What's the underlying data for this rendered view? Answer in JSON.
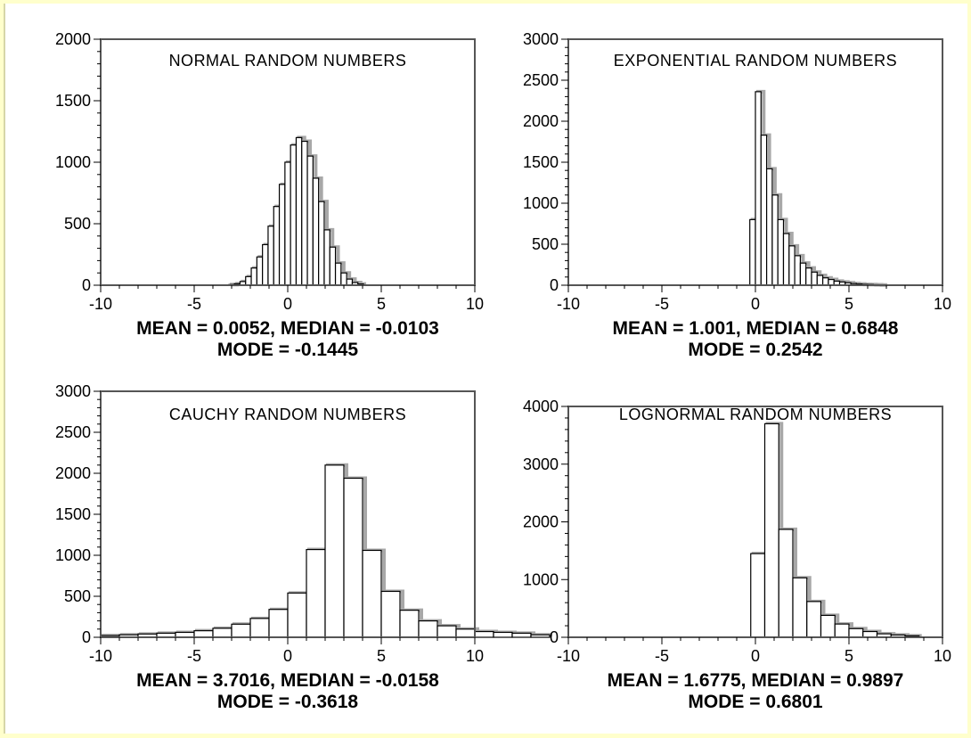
{
  "chart_data": [
    {
      "type": "bar",
      "title": "NORMAL RANDOM NUMBERS",
      "stats_line1": "MEAN = 0.0052, MEDIAN = -0.0103",
      "stats_line2": "MODE = -0.1445",
      "xlim": [
        -10,
        10
      ],
      "ylim": [
        0,
        2000
      ],
      "xticks": [
        -10,
        -5,
        0,
        5,
        10
      ],
      "yticks": [
        0,
        500,
        1000,
        1500,
        2000
      ],
      "bin_width": 0.3,
      "bin_start": -3.15,
      "values": [
        5,
        12,
        30,
        70,
        140,
        230,
        330,
        480,
        640,
        820,
        1000,
        1140,
        1200,
        1170,
        1050,
        870,
        680,
        450,
        310,
        180,
        100,
        50,
        22,
        10
      ],
      "grey_overlay": true
    },
    {
      "type": "bar",
      "title": "EXPONENTIAL RANDOM NUMBERS",
      "stats_line1": "MEAN = 1.001, MEDIAN = 0.6848",
      "stats_line2": "MODE = 0.2542",
      "xlim": [
        -10,
        10
      ],
      "ylim": [
        0,
        3000
      ],
      "xticks": [
        -10,
        -5,
        0,
        5,
        10
      ],
      "yticks": [
        0,
        500,
        1000,
        1500,
        2000,
        2500,
        3000
      ],
      "bin_width": 0.3,
      "bin_start": -0.3,
      "values": [
        800,
        2360,
        1830,
        1420,
        1100,
        800,
        630,
        480,
        360,
        270,
        210,
        160,
        120,
        90,
        70,
        50,
        40,
        30,
        20,
        15,
        10,
        8,
        5,
        3
      ],
      "grey_overlay": true
    },
    {
      "type": "bar",
      "title": "CAUCHY RANDOM NUMBERS",
      "stats_line1": "MEAN = 3.7016, MEDIAN = -0.0158",
      "stats_line2": "MODE = -0.3618",
      "xlim": [
        -10,
        10
      ],
      "ylim": [
        0,
        3000
      ],
      "xticks": [
        -10,
        -5,
        0,
        5,
        10
      ],
      "yticks": [
        0,
        500,
        1000,
        1500,
        2000,
        2500,
        3000
      ],
      "bin_width": 1.0,
      "bin_start": -10.0,
      "values": [
        20,
        30,
        40,
        50,
        60,
        80,
        110,
        160,
        230,
        340,
        540,
        1070,
        2100,
        1940,
        1060,
        560,
        330,
        200,
        140,
        100,
        70,
        60,
        50,
        30
      ],
      "grey_overlay": true
    },
    {
      "type": "bar",
      "title": "LOGNORMAL RANDOM NUMBERS",
      "stats_line1": "MEAN = 1.6775, MEDIAN = 0.9897",
      "stats_line2": "MODE = 0.6801",
      "xlim": [
        -10,
        10
      ],
      "ylim": [
        0,
        4000
      ],
      "xticks": [
        -10,
        -5,
        0,
        5,
        10
      ],
      "yticks": [
        0,
        1000,
        2000,
        3000,
        4000
      ],
      "bin_width": 0.75,
      "bin_start": -0.25,
      "values": [
        1450,
        3700,
        1870,
        1030,
        620,
        380,
        230,
        150,
        100,
        60,
        40,
        25
      ],
      "grey_overlay": true
    }
  ]
}
